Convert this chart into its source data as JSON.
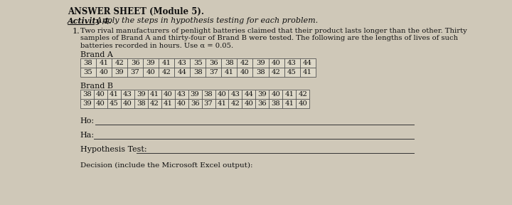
{
  "title": "ANSWER SHEET (Module 5).",
  "activity": "Activity 4.",
  "activity_text": " Apply the steps in hypothesis testing for each problem.",
  "problem_number": "1.",
  "problem_line1": "Two rival manufacturers of penlight batteries claimed that their product lasts longer than the other. Thirty",
  "problem_line2": "samples of Brand A and thirty-four of Brand B were tested. The following are the lengths of lives of such",
  "problem_line3": "batteries recorded in hours. Use α = 0.05.",
  "brand_a_label": "Brand A",
  "brand_a_row1": [
    38,
    41,
    42,
    36,
    39,
    41,
    43,
    35,
    36,
    38,
    42,
    39,
    40,
    43,
    44
  ],
  "brand_a_row2": [
    35,
    40,
    39,
    37,
    40,
    42,
    44,
    38,
    37,
    41,
    40,
    38,
    42,
    45,
    41
  ],
  "brand_b_label": "Brand B",
  "brand_b_row1": [
    38,
    40,
    41,
    43,
    39,
    41,
    40,
    43,
    39,
    38,
    40,
    43,
    44,
    39,
    40,
    41,
    42
  ],
  "brand_b_row2": [
    39,
    40,
    45,
    40,
    38,
    42,
    41,
    40,
    36,
    37,
    41,
    42,
    40,
    36,
    38,
    41,
    40
  ],
  "ho_label": "Ho:",
  "ha_label": "Ha:",
  "hyp_label": "Hypothesis Test:",
  "decision_label": "Decision (include the Microsoft Excel output):",
  "bg_color": "#cfc8b8",
  "table_bg": "#ddd8c8",
  "text_color": "#111111",
  "line_color": "#333333"
}
